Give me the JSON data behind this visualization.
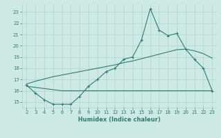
{
  "xlabel": "Humidex (Indice chaleur)",
  "x_main": [
    2,
    3,
    4,
    5,
    6,
    7,
    8,
    9,
    10,
    11,
    12,
    13,
    14,
    15,
    16,
    17,
    18,
    19,
    20,
    21,
    22,
    23
  ],
  "y_main": [
    16.5,
    15.8,
    15.2,
    14.8,
    14.8,
    14.8,
    15.5,
    16.4,
    17.0,
    17.7,
    18.0,
    18.8,
    19.0,
    20.5,
    23.3,
    21.4,
    20.9,
    21.1,
    19.7,
    18.8,
    18.0,
    16.0
  ],
  "x_upper": [
    2,
    3,
    4,
    5,
    6,
    7,
    8,
    9,
    10,
    11,
    12,
    13,
    14,
    15,
    16,
    17,
    18,
    19,
    20,
    21,
    22,
    23
  ],
  "y_upper": [
    16.6,
    16.85,
    17.05,
    17.25,
    17.4,
    17.55,
    17.7,
    17.85,
    18.0,
    18.15,
    18.3,
    18.5,
    18.65,
    18.85,
    19.05,
    19.25,
    19.45,
    19.65,
    19.7,
    19.55,
    19.3,
    18.9
  ],
  "x_lower": [
    2,
    3,
    4,
    5,
    6,
    7,
    8,
    9,
    10,
    11,
    12,
    13,
    14,
    15,
    16,
    17,
    18,
    19,
    20,
    21,
    22,
    23
  ],
  "y_lower": [
    16.4,
    16.3,
    16.2,
    16.1,
    16.0,
    16.0,
    16.0,
    16.0,
    16.0,
    16.0,
    16.0,
    16.0,
    16.0,
    16.0,
    16.0,
    16.0,
    16.0,
    16.0,
    16.0,
    16.0,
    16.0,
    16.0
  ],
  "line_color": "#2e7d6e",
  "bg_color": "#cce9e4",
  "grid_color": "#aad4cd",
  "ylim": [
    14.5,
    23.7
  ],
  "xlim": [
    1.5,
    23.5
  ],
  "yticks": [
    15,
    16,
    17,
    18,
    19,
    20,
    21,
    22,
    23
  ],
  "xticks": [
    2,
    3,
    4,
    5,
    6,
    7,
    8,
    9,
    10,
    11,
    12,
    13,
    14,
    15,
    16,
    17,
    18,
    19,
    20,
    21,
    22,
    23
  ]
}
